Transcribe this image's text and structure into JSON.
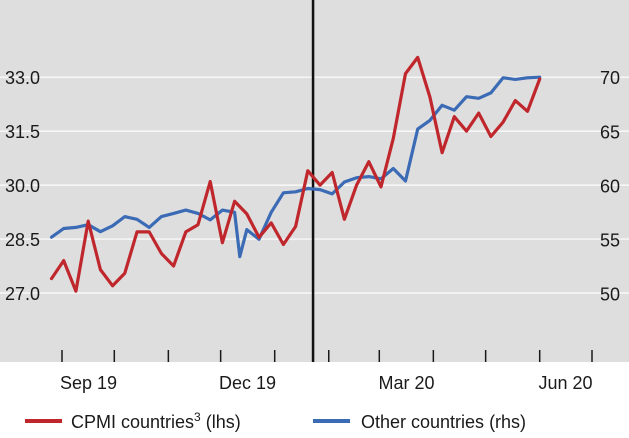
{
  "chart_data": {
    "type": "line",
    "x_tick_labels": [
      "Sep 19",
      "Dec 19",
      "Mar 20",
      "Jun 20"
    ],
    "x_ticks_months": [
      "2019-09",
      "2019-10",
      "2019-11",
      "2019-12",
      "2020-01",
      "2020-02",
      "2020-03",
      "2020-04",
      "2020-05",
      "2020-06",
      "2020-07"
    ],
    "x_range": [
      "2019-08-15",
      "2020-07-10"
    ],
    "event_marker_date": "2020-01-23",
    "y_left": {
      "ticks": [
        "27.0",
        "28.5",
        "30.0",
        "31.5",
        "33.0"
      ],
      "range": [
        26.0,
        34.2
      ]
    },
    "y_right": {
      "ticks": [
        "50",
        "55",
        "60",
        "65",
        "70"
      ],
      "range": [
        46.7,
        74.0
      ]
    },
    "grid": true,
    "legend_position": "bottom",
    "series": [
      {
        "name": "CPMI countries",
        "name_superscript": "3",
        "axis_label": "(lhs)",
        "axis": "left",
        "color": "#c0272d",
        "points": [
          [
            "2019-08-26",
            27.4
          ],
          [
            "2019-09-02",
            27.9
          ],
          [
            "2019-09-09",
            27.05
          ],
          [
            "2019-09-16",
            29.0
          ],
          [
            "2019-09-23",
            27.65
          ],
          [
            "2019-09-30",
            27.2
          ],
          [
            "2019-10-07",
            27.55
          ],
          [
            "2019-10-14",
            28.7
          ],
          [
            "2019-10-21",
            28.7
          ],
          [
            "2019-10-28",
            28.1
          ],
          [
            "2019-11-04",
            27.75
          ],
          [
            "2019-11-11",
            28.7
          ],
          [
            "2019-11-18",
            28.9
          ],
          [
            "2019-11-25",
            30.1
          ],
          [
            "2019-12-02",
            28.4
          ],
          [
            "2019-12-09",
            29.55
          ],
          [
            "2019-12-16",
            29.2
          ],
          [
            "2019-12-23",
            28.55
          ],
          [
            "2019-12-30",
            28.95
          ],
          [
            "2020-01-06",
            28.35
          ],
          [
            "2020-01-13",
            28.85
          ],
          [
            "2020-01-20",
            30.4
          ],
          [
            "2020-01-27",
            30.0
          ],
          [
            "2020-02-03",
            30.35
          ],
          [
            "2020-02-10",
            29.05
          ],
          [
            "2020-02-17",
            30.0
          ],
          [
            "2020-02-24",
            30.65
          ],
          [
            "2020-03-02",
            29.95
          ],
          [
            "2020-03-09",
            31.3
          ],
          [
            "2020-03-16",
            33.1
          ],
          [
            "2020-03-23",
            33.55
          ],
          [
            "2020-03-30",
            32.45
          ],
          [
            "2020-04-06",
            30.9
          ],
          [
            "2020-04-13",
            31.9
          ],
          [
            "2020-04-20",
            31.5
          ],
          [
            "2020-04-27",
            32.0
          ],
          [
            "2020-05-04",
            31.35
          ],
          [
            "2020-05-11",
            31.75
          ],
          [
            "2020-05-18",
            32.35
          ],
          [
            "2020-05-25",
            32.05
          ],
          [
            "2020-06-01",
            32.95
          ]
        ]
      },
      {
        "name": "Other countries",
        "axis_label": "(rhs)",
        "axis": "right",
        "color": "#3b6bb5",
        "points": [
          [
            "2019-08-26",
            55.2
          ],
          [
            "2019-09-02",
            56.0
          ],
          [
            "2019-09-09",
            56.1
          ],
          [
            "2019-09-16",
            56.35
          ],
          [
            "2019-09-23",
            55.7
          ],
          [
            "2019-09-30",
            56.25
          ],
          [
            "2019-10-07",
            57.1
          ],
          [
            "2019-10-14",
            56.85
          ],
          [
            "2019-10-21",
            56.1
          ],
          [
            "2019-10-28",
            57.1
          ],
          [
            "2019-11-04",
            57.4
          ],
          [
            "2019-11-11",
            57.7
          ],
          [
            "2019-11-18",
            57.4
          ],
          [
            "2019-11-25",
            56.8
          ],
          [
            "2019-12-02",
            57.7
          ],
          [
            "2019-12-09",
            57.5
          ],
          [
            "2019-12-12",
            53.4
          ],
          [
            "2019-12-16",
            55.9
          ],
          [
            "2019-12-23",
            55.0
          ],
          [
            "2019-12-30",
            57.5
          ],
          [
            "2020-01-06",
            59.3
          ],
          [
            "2020-01-13",
            59.4
          ],
          [
            "2020-01-20",
            59.7
          ],
          [
            "2020-01-27",
            59.6
          ],
          [
            "2020-02-03",
            59.2
          ],
          [
            "2020-02-10",
            60.3
          ],
          [
            "2020-02-17",
            60.7
          ],
          [
            "2020-02-24",
            60.8
          ],
          [
            "2020-03-02",
            60.6
          ],
          [
            "2020-03-09",
            61.55
          ],
          [
            "2020-03-16",
            60.4
          ],
          [
            "2020-03-23",
            65.2
          ],
          [
            "2020-03-30",
            66.0
          ],
          [
            "2020-04-06",
            67.4
          ],
          [
            "2020-04-13",
            66.95
          ],
          [
            "2020-04-20",
            68.2
          ],
          [
            "2020-04-27",
            68.05
          ],
          [
            "2020-05-04",
            68.55
          ],
          [
            "2020-05-11",
            69.95
          ],
          [
            "2020-05-18",
            69.8
          ],
          [
            "2020-05-25",
            69.95
          ],
          [
            "2020-06-01",
            70.0
          ]
        ]
      }
    ]
  }
}
